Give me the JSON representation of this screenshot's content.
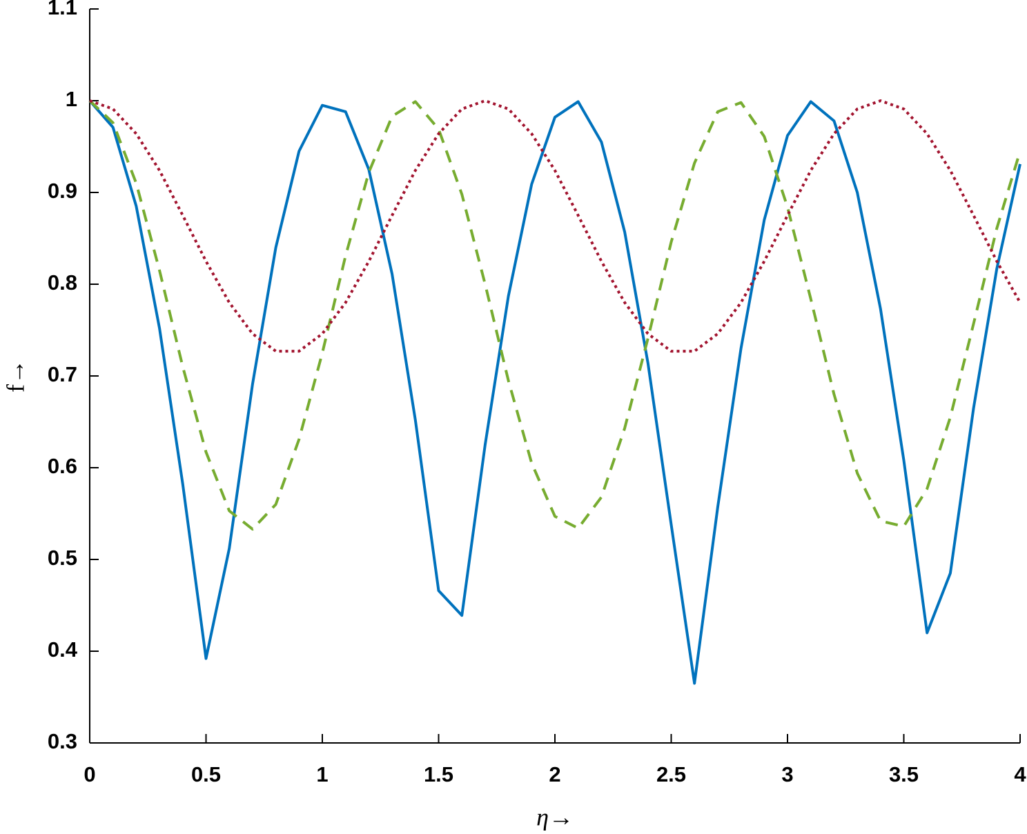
{
  "chart_data": {
    "type": "line",
    "x_label": "η→",
    "y_label": "f→",
    "x": [
      0,
      0.1,
      0.2,
      0.3,
      0.4,
      0.5,
      0.6,
      0.7,
      0.8,
      0.9,
      1.0,
      1.1,
      1.2,
      1.3,
      1.4,
      1.5,
      1.6,
      1.7,
      1.8,
      1.9,
      2.0,
      2.1,
      2.2,
      2.3,
      2.4,
      2.5,
      2.6,
      2.7,
      2.8,
      2.9,
      3.0,
      3.1,
      3.2,
      3.3,
      3.4,
      3.5,
      3.6,
      3.7,
      3.8,
      3.9,
      4.0
    ],
    "series": [
      {
        "color": "#0072BD",
        "style": "solid",
        "values": [
          1.0,
          0.971,
          0.885,
          0.752,
          0.582,
          0.392,
          0.512,
          0.691,
          0.84,
          0.945,
          0.995,
          0.988,
          0.925,
          0.811,
          0.652,
          0.466,
          0.439,
          0.625,
          0.787,
          0.909,
          0.982,
          0.999,
          0.955,
          0.857,
          0.714,
          0.538,
          0.365,
          0.557,
          0.73,
          0.87,
          0.962,
          0.999,
          0.978,
          0.9,
          0.773,
          0.608,
          0.42,
          0.485,
          0.665,
          0.817,
          0.931
        ]
      },
      {
        "color": "#77AC30",
        "style": "dashed",
        "values": [
          1.0,
          0.976,
          0.91,
          0.815,
          0.71,
          0.617,
          0.553,
          0.533,
          0.56,
          0.631,
          0.725,
          0.831,
          0.922,
          0.983,
          0.999,
          0.969,
          0.898,
          0.8,
          0.695,
          0.605,
          0.547,
          0.534,
          0.568,
          0.643,
          0.741,
          0.846,
          0.932,
          0.988,
          0.998,
          0.961,
          0.884,
          0.784,
          0.68,
          0.594,
          0.542,
          0.536,
          0.577,
          0.655,
          0.757,
          0.861,
          0.945
        ]
      },
      {
        "color": "#A2142F",
        "style": "dotted",
        "values": [
          1.0,
          0.991,
          0.964,
          0.924,
          0.875,
          0.825,
          0.78,
          0.746,
          0.727,
          0.727,
          0.746,
          0.78,
          0.825,
          0.875,
          0.924,
          0.964,
          0.991,
          1.0,
          0.991,
          0.964,
          0.924,
          0.875,
          0.825,
          0.78,
          0.746,
          0.727,
          0.727,
          0.746,
          0.78,
          0.825,
          0.875,
          0.924,
          0.964,
          0.991,
          1.0,
          0.991,
          0.964,
          0.924,
          0.875,
          0.825,
          0.78
        ]
      }
    ],
    "xlim": [
      0,
      4
    ],
    "xticks": [
      0,
      0.5,
      1,
      1.5,
      2,
      2.5,
      3,
      3.5,
      4
    ],
    "ylim": [
      0.3,
      1.1
    ],
    "yticks": [
      0.3,
      0.4,
      0.5,
      0.6,
      0.7,
      0.8,
      0.9,
      1,
      1.1
    ],
    "grid": false
  }
}
